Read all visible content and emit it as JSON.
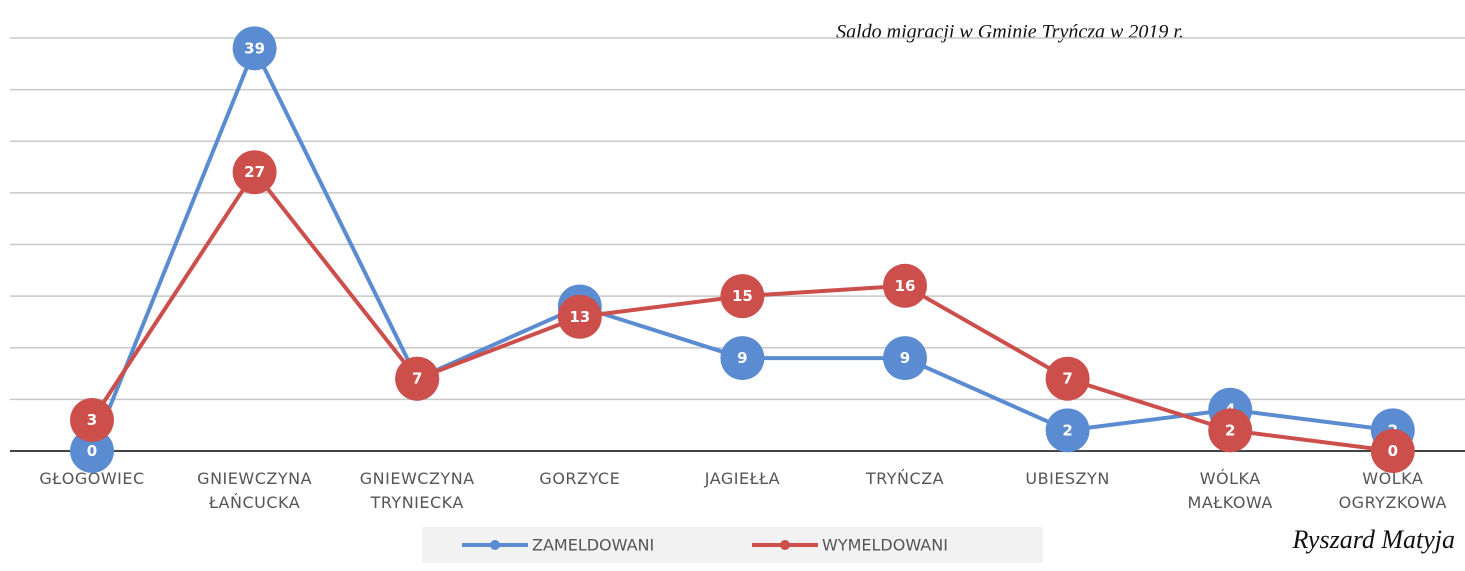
{
  "chart_data": {
    "type": "line",
    "title": "Saldo migracji w Gminie Tryńcza  w 2019 r.",
    "author": "Ryszard Matyja",
    "categories": [
      "GŁOGOWIEC",
      "GNIEWCZYNA ŁAŃCUCKA",
      "GNIEWCZYNA TRYNIECKA",
      "GORZYCE",
      "JAGIEŁŁA",
      "TRYŃCZA",
      "UBIESZYN",
      "WÓLKA MAŁKOWA",
      "WÓLKA OGRYZKOWA"
    ],
    "series": [
      {
        "name": "ZAMELDOWANI",
        "color": "#5b8bd0",
        "values": [
          0,
          39,
          7,
          14,
          9,
          9,
          2,
          4,
          2
        ]
      },
      {
        "name": "WYMELDOWANI",
        "color": "#cc4f4c",
        "values": [
          3,
          27,
          7,
          13,
          15,
          16,
          7,
          2,
          0
        ]
      }
    ],
    "ylim": [
      0,
      40
    ],
    "yticks": [
      0,
      5,
      10,
      15,
      20,
      25,
      30,
      35,
      40
    ],
    "grid": true,
    "legend": "bottom"
  }
}
